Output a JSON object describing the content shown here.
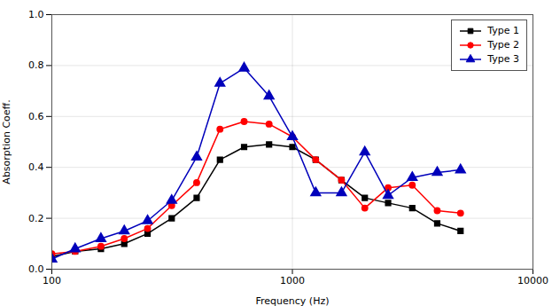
{
  "chart_data": {
    "type": "line",
    "xlabel": "Frequency (Hz)",
    "ylabel": "Absorption Coeff.",
    "x": [
      100,
      125,
      160,
      200,
      250,
      315,
      400,
      500,
      630,
      800,
      1000,
      1250,
      1600,
      2000,
      2500,
      3150,
      4000,
      5000
    ],
    "series": [
      {
        "name": "Type 1",
        "color": "#000000",
        "marker": "square",
        "values": [
          0.05,
          0.07,
          0.08,
          0.1,
          0.14,
          0.2,
          0.28,
          0.43,
          0.48,
          0.49,
          0.48,
          0.43,
          0.35,
          0.28,
          0.26,
          0.24,
          0.18,
          0.15
        ]
      },
      {
        "name": "Type 2",
        "color": "#ff0000",
        "marker": "circle",
        "values": [
          0.06,
          0.07,
          0.09,
          0.12,
          0.16,
          0.25,
          0.34,
          0.55,
          0.58,
          0.57,
          0.52,
          0.43,
          0.35,
          0.24,
          0.32,
          0.33,
          0.23,
          0.22
        ]
      },
      {
        "name": "Type 3",
        "color": "#0000bb",
        "marker": "triangle",
        "values": [
          0.04,
          0.08,
          0.12,
          0.15,
          0.19,
          0.27,
          0.44,
          0.73,
          0.79,
          0.68,
          0.52,
          0.3,
          0.3,
          0.46,
          0.29,
          0.36,
          0.38,
          0.39
        ]
      }
    ],
    "xlim": [
      100,
      10000
    ],
    "ylim": [
      0.0,
      1.0
    ],
    "xticks": [
      100,
      1000,
      10000
    ],
    "yticks": [
      {
        "value": 0.0,
        "label": "0.0"
      },
      0.2,
      0.4,
      0.6,
      0.8,
      {
        "value": 1.0,
        "label": "1.0"
      }
    ],
    "log": "x",
    "grid": true,
    "legend": "upper right"
  }
}
